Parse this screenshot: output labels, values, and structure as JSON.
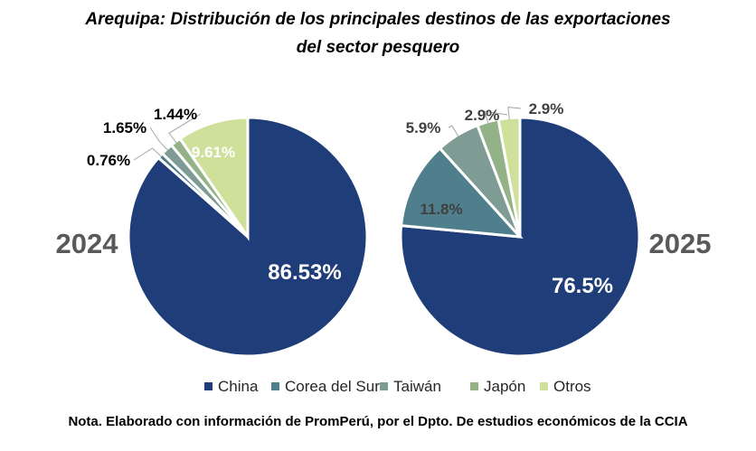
{
  "title_line1": "Arequipa: Distribución de los principales destinos de las exportaciones",
  "title_line2": "del sector pesquero",
  "note": "Nota. Elaborado con información de PromPerú, por el Dpto. De estudios económicos de la CCIA",
  "colors": {
    "China": "#1f3d78",
    "Corea del Sur": "#4f7f8c",
    "Taiwán": "#7f9c94",
    "Japón": "#93b287",
    "Otros": "#cfe09a"
  },
  "chart_data": [
    {
      "type": "pie",
      "year_label": "2024",
      "slices": [
        {
          "name": "China",
          "value": 86.53,
          "label": "86.53%"
        },
        {
          "name": "Corea del Sur",
          "value": 0.76,
          "label": "0.76%"
        },
        {
          "name": "Taiwán",
          "value": 1.65,
          "label": "1.65%"
        },
        {
          "name": "Japón",
          "value": 1.44,
          "label": "1.44%"
        },
        {
          "name": "Otros",
          "value": 9.61,
          "label": "9.61%"
        }
      ]
    },
    {
      "type": "pie",
      "year_label": "2025",
      "slices": [
        {
          "name": "China",
          "value": 76.5,
          "label": "76.5%"
        },
        {
          "name": "Corea del Sur",
          "value": 11.8,
          "label": "11.8%"
        },
        {
          "name": "Taiwán",
          "value": 5.9,
          "label": "5.9%"
        },
        {
          "name": "Japón",
          "value": 2.9,
          "label": "2.9%"
        },
        {
          "name": "Otros",
          "value": 2.9,
          "label": "2.9%"
        }
      ]
    }
  ],
  "legend": [
    "China",
    "Corea del Sur",
    "Taiwán",
    "Japón",
    "Otros"
  ]
}
